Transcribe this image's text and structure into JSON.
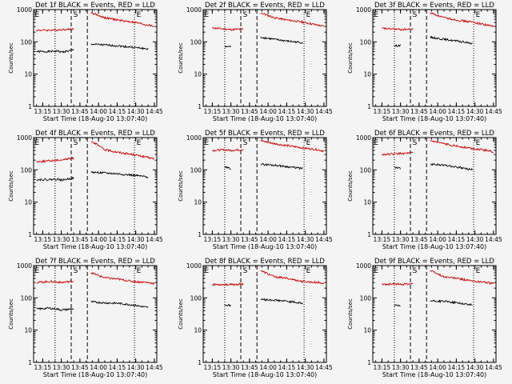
{
  "figure": {
    "xaxis_title": "Start Time (18-Aug-10 13:07:40)",
    "yaxis_title": "Counts/sec",
    "x_tick_labels": [
      "13:15",
      "13:30",
      "13:45",
      "14:00",
      "14:15",
      "14:30",
      "14:45"
    ],
    "y_tick_labels": [
      "1",
      "10",
      "100",
      "1000"
    ],
    "colors": {
      "events": "#000000",
      "lld": "#cc0000",
      "axes": "#000000",
      "background": "#f4f4f4"
    }
  },
  "chart_data": [
    {
      "type": "line",
      "title": "Det 1f BLACK = Events, RED = LLD",
      "xlabel": "Start Time (18-Aug-10 13:07:40)",
      "ylabel": "Counts/sec",
      "ylog": true,
      "ylim": [
        1,
        1000
      ],
      "xlim": [
        "13:07:40",
        "14:47:00"
      ],
      "x": [
        "13:10",
        "13:20",
        "13:27",
        "13:30",
        "13:40",
        "13:47",
        "13:54",
        "14:05",
        "14:16",
        "14:28",
        "14:40",
        "14:45"
      ],
      "series": [
        {
          "name": "Events",
          "values": [
            50,
            50,
            52,
            48,
            56,
            null,
            85,
            80,
            75,
            68,
            60,
            null
          ]
        },
        {
          "name": "LLD",
          "values": [
            230,
            230,
            235,
            240,
            250,
            null,
            800,
            560,
            470,
            410,
            330,
            300
          ]
        }
      ],
      "vlines": {
        "dotted": [
          "13:25",
          "14:29"
        ],
        "dashed": [
          "13:38",
          "13:51"
        ]
      },
      "markers": [
        {
          "label": "E",
          "x": "13:08"
        },
        {
          "label": "S",
          "x": "13:39"
        },
        {
          "label": "E",
          "x": "14:30"
        }
      ]
    },
    {
      "type": "line",
      "title": "Det 2f BLACK = Events, RED = LLD",
      "xlabel": "Start Time (18-Aug-10 13:07:40)",
      "ylabel": "Counts/sec",
      "ylog": true,
      "ylim": [
        1,
        1000
      ],
      "xlim": [
        "13:07:40",
        "14:47:00"
      ],
      "x": [
        "13:15",
        "13:25",
        "13:30",
        "13:40",
        "13:47",
        "13:54",
        "14:05",
        "14:16",
        "14:28",
        "14:40",
        "14:45"
      ],
      "series": [
        {
          "name": "Events",
          "values": [
            null,
            70,
            72,
            null,
            null,
            140,
            120,
            105,
            95,
            null,
            null
          ]
        },
        {
          "name": "LLD",
          "values": [
            270,
            250,
            240,
            250,
            null,
            800,
            560,
            470,
            410,
            330,
            300
          ]
        }
      ],
      "vlines": {
        "dotted": [
          "13:25",
          "14:29"
        ],
        "dashed": [
          "13:38",
          "13:51"
        ]
      },
      "markers": [
        {
          "label": "E",
          "x": "13:08"
        },
        {
          "label": "S",
          "x": "13:39"
        },
        {
          "label": "E",
          "x": "14:30"
        }
      ]
    },
    {
      "type": "line",
      "title": "Det 3f BLACK = Events, RED = LLD",
      "xlabel": "Start Time (18-Aug-10 13:07:40)",
      "ylabel": "Counts/sec",
      "ylog": true,
      "ylim": [
        1,
        1000
      ],
      "xlim": [
        "13:07:40",
        "14:47:00"
      ],
      "x": [
        "13:15",
        "13:25",
        "13:30",
        "13:40",
        "13:47",
        "13:54",
        "14:05",
        "14:16",
        "14:28",
        "14:40",
        "14:45"
      ],
      "series": [
        {
          "name": "Events",
          "values": [
            null,
            75,
            78,
            null,
            null,
            140,
            120,
            105,
            90,
            null,
            null
          ]
        },
        {
          "name": "LLD",
          "values": [
            260,
            250,
            240,
            250,
            null,
            800,
            560,
            470,
            410,
            330,
            300
          ]
        }
      ],
      "vlines": {
        "dotted": [
          "13:25",
          "14:29"
        ],
        "dashed": [
          "13:38",
          "13:51"
        ]
      },
      "markers": [
        {
          "label": "E",
          "x": "13:08"
        },
        {
          "label": "S",
          "x": "13:39"
        },
        {
          "label": "E",
          "x": "14:30"
        }
      ]
    },
    {
      "type": "line",
      "title": "Det 4f BLACK = Events, RED = LLD",
      "xlabel": "Start Time (18-Aug-10 13:07:40)",
      "ylabel": "Counts/sec",
      "ylog": true,
      "ylim": [
        1,
        1000
      ],
      "xlim": [
        "13:07:40",
        "14:47:00"
      ],
      "x": [
        "13:10",
        "13:20",
        "13:27",
        "13:30",
        "13:40",
        "13:47",
        "13:54",
        "14:05",
        "14:16",
        "14:28",
        "14:40",
        "14:45"
      ],
      "series": [
        {
          "name": "Events",
          "values": [
            50,
            50,
            52,
            48,
            56,
            null,
            85,
            80,
            75,
            68,
            60,
            null
          ]
        },
        {
          "name": "LLD",
          "values": [
            180,
            190,
            200,
            205,
            230,
            null,
            800,
            420,
            350,
            300,
            240,
            220
          ]
        }
      ],
      "vlines": {
        "dotted": [
          "13:25",
          "14:29"
        ],
        "dashed": [
          "13:38",
          "13:51"
        ]
      },
      "markers": [
        {
          "label": "E",
          "x": "13:08"
        },
        {
          "label": "S",
          "x": "13:39"
        },
        {
          "label": "E",
          "x": "14:30"
        }
      ]
    },
    {
      "type": "line",
      "title": "Det 5f BLACK = Events, RED = LLD",
      "xlabel": "Start Time (18-Aug-10 13:07:40)",
      "ylabel": "Counts/sec",
      "ylog": true,
      "ylim": [
        1,
        1000
      ],
      "xlim": [
        "13:07:40",
        "14:47:00"
      ],
      "x": [
        "13:15",
        "13:25",
        "13:30",
        "13:40",
        "13:47",
        "13:54",
        "14:05",
        "14:16",
        "14:28",
        "14:40",
        "14:45"
      ],
      "series": [
        {
          "name": "Events",
          "values": [
            null,
            120,
            110,
            null,
            null,
            150,
            140,
            125,
            110,
            null,
            null
          ]
        },
        {
          "name": "LLD",
          "values": [
            400,
            420,
            400,
            430,
            null,
            800,
            650,
            560,
            480,
            420,
            380
          ]
        }
      ],
      "vlines": {
        "dotted": [
          "13:25",
          "14:29"
        ],
        "dashed": [
          "13:38",
          "13:51"
        ]
      },
      "markers": [
        {
          "label": "E",
          "x": "13:08"
        },
        {
          "label": "S",
          "x": "13:39"
        },
        {
          "label": "E",
          "x": "14:30"
        }
      ]
    },
    {
      "type": "line",
      "title": "Det 6f BLACK = Events, RED = LLD",
      "xlabel": "Start Time (18-Aug-10 13:07:40)",
      "ylabel": "Counts/sec",
      "ylog": true,
      "ylim": [
        1,
        1000
      ],
      "xlim": [
        "13:07:40",
        "14:47:00"
      ],
      "x": [
        "13:15",
        "13:25",
        "13:30",
        "13:40",
        "13:47",
        "13:54",
        "14:05",
        "14:16",
        "14:28",
        "14:40",
        "14:45"
      ],
      "series": [
        {
          "name": "Events",
          "values": [
            null,
            120,
            110,
            null,
            null,
            150,
            140,
            120,
            100,
            null,
            null
          ]
        },
        {
          "name": "LLD",
          "values": [
            300,
            310,
            320,
            330,
            null,
            800,
            640,
            540,
            460,
            400,
            360
          ]
        }
      ],
      "vlines": {
        "dotted": [
          "13:25",
          "14:29"
        ],
        "dashed": [
          "13:38",
          "13:51"
        ]
      },
      "markers": [
        {
          "label": "E",
          "x": "13:08"
        },
        {
          "label": "S",
          "x": "13:39"
        },
        {
          "label": "E",
          "x": "14:30"
        }
      ]
    },
    {
      "type": "line",
      "title": "Det 7f BLACK = Events, RED = LLD",
      "xlabel": "Start Time (18-Aug-10 13:07:40)",
      "ylabel": "Counts/sec",
      "ylog": true,
      "ylim": [
        1,
        1000
      ],
      "xlim": [
        "13:07:40",
        "14:47:00"
      ],
      "x": [
        "13:10",
        "13:20",
        "13:27",
        "13:30",
        "13:40",
        "13:47",
        "13:54",
        "14:05",
        "14:16",
        "14:28",
        "14:40",
        "14:45"
      ],
      "series": [
        {
          "name": "Events",
          "values": [
            45,
            48,
            45,
            42,
            46,
            null,
            75,
            70,
            68,
            60,
            50,
            null
          ]
        },
        {
          "name": "LLD",
          "values": [
            300,
            320,
            310,
            300,
            330,
            null,
            600,
            420,
            380,
            320,
            300,
            280
          ]
        }
      ],
      "vlines": {
        "dotted": [
          "13:25",
          "14:29"
        ],
        "dashed": [
          "13:38",
          "13:51"
        ]
      },
      "markers": [
        {
          "label": "E",
          "x": "13:08"
        },
        {
          "label": "S",
          "x": "13:39"
        },
        {
          "label": "E",
          "x": "14:30"
        }
      ]
    },
    {
      "type": "line",
      "title": "Det 8f BLACK = Events, RED = LLD",
      "xlabel": "Start Time (18-Aug-10 13:07:40)",
      "ylabel": "Counts/sec",
      "ylog": true,
      "ylim": [
        1,
        1000
      ],
      "xlim": [
        "13:07:40",
        "14:47:00"
      ],
      "x": [
        "13:15",
        "13:25",
        "13:30",
        "13:40",
        "13:47",
        "13:54",
        "14:05",
        "14:16",
        "14:28",
        "14:40",
        "14:45"
      ],
      "series": [
        {
          "name": "Events",
          "values": [
            null,
            60,
            58,
            null,
            null,
            90,
            85,
            78,
            68,
            null,
            null
          ]
        },
        {
          "name": "LLD",
          "values": [
            260,
            260,
            255,
            270,
            null,
            700,
            450,
            400,
            320,
            300,
            280
          ]
        }
      ],
      "vlines": {
        "dotted": [
          "13:25",
          "14:29"
        ],
        "dashed": [
          "13:38",
          "13:51"
        ]
      },
      "markers": [
        {
          "label": "E",
          "x": "13:08"
        },
        {
          "label": "S",
          "x": "13:39"
        },
        {
          "label": "E",
          "x": "14:30"
        }
      ]
    },
    {
      "type": "line",
      "title": "Det 9f BLACK = Events, RED = LLD",
      "xlabel": "Start Time (18-Aug-10 13:07:40)",
      "ylabel": "Counts/sec",
      "ylog": true,
      "ylim": [
        1,
        1000
      ],
      "xlim": [
        "13:07:40",
        "14:47:00"
      ],
      "x": [
        "13:15",
        "13:25",
        "13:30",
        "13:40",
        "13:47",
        "13:54",
        "14:05",
        "14:16",
        "14:28",
        "14:40",
        "14:45"
      ],
      "series": [
        {
          "name": "Events",
          "values": [
            null,
            58,
            55,
            null,
            null,
            80,
            78,
            70,
            60,
            null,
            null
          ]
        },
        {
          "name": "LLD",
          "values": [
            260,
            270,
            260,
            280,
            null,
            700,
            450,
            400,
            330,
            300,
            280
          ]
        }
      ],
      "vlines": {
        "dotted": [
          "13:25",
          "14:29"
        ],
        "dashed": [
          "13:38",
          "13:51"
        ]
      },
      "markers": [
        {
          "label": "E",
          "x": "13:08"
        },
        {
          "label": "S",
          "x": "13:39"
        },
        {
          "label": "E",
          "x": "14:30"
        }
      ]
    }
  ]
}
